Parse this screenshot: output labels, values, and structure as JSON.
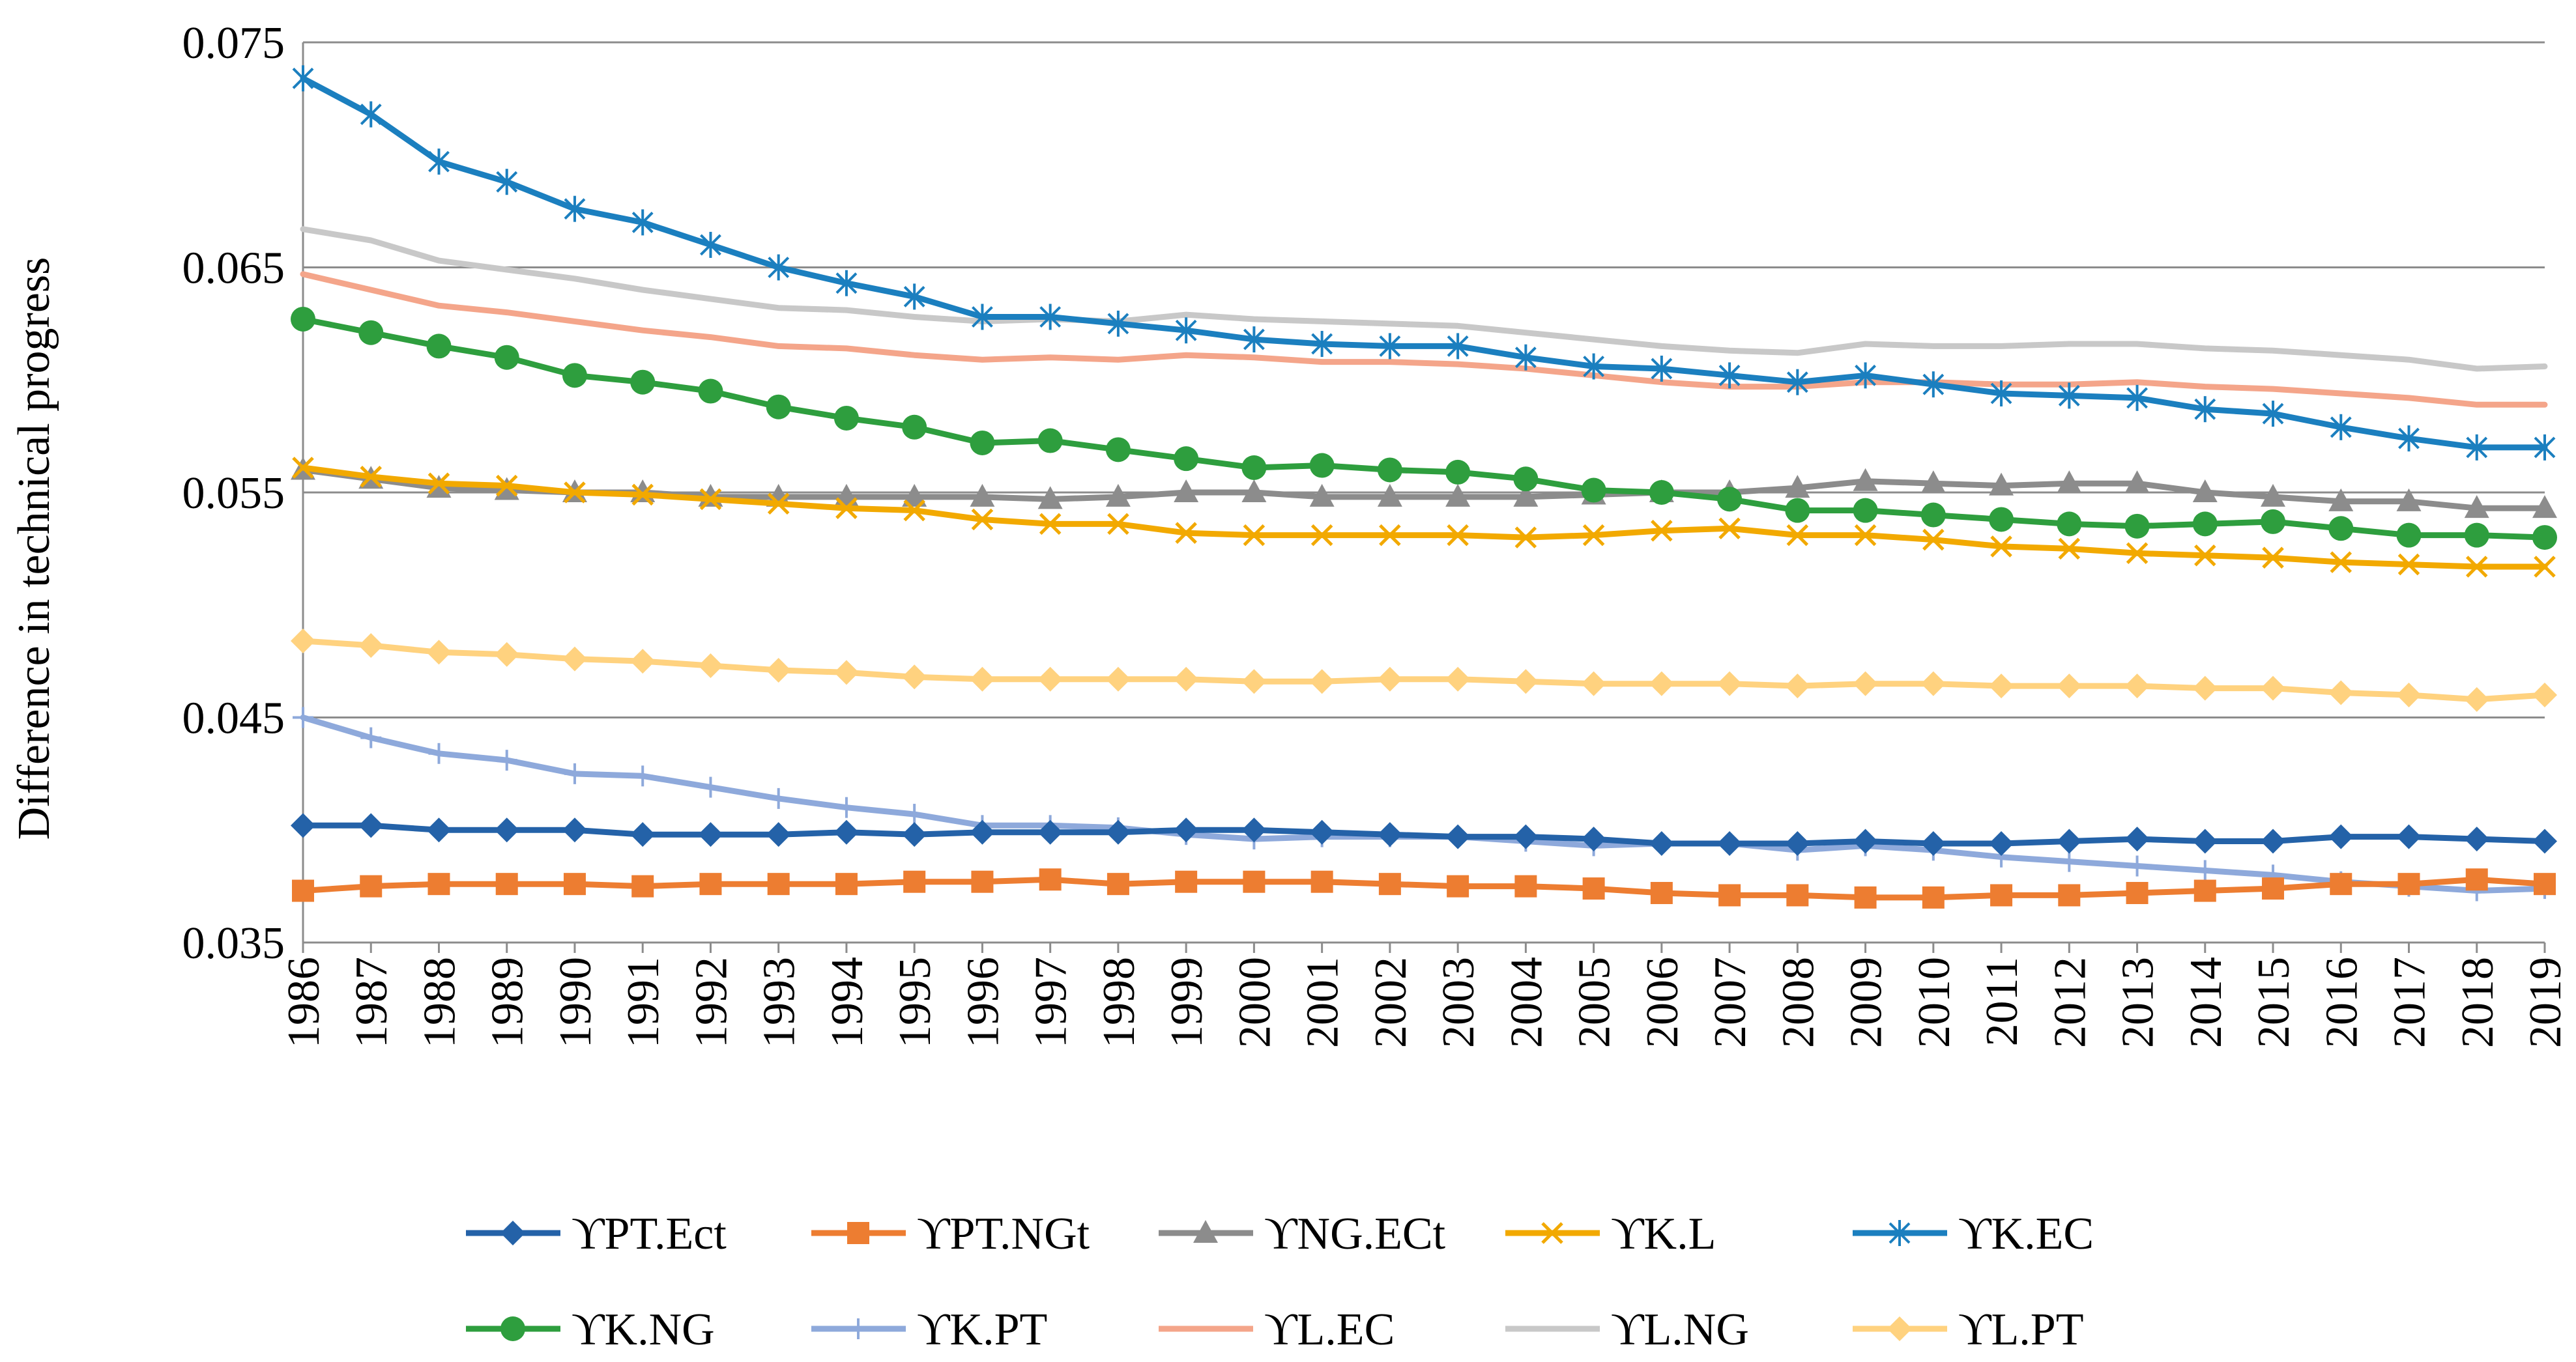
{
  "chart_data": {
    "type": "line",
    "title": "",
    "xlabel": "",
    "ylabel": "Difference in technical progress",
    "ylim": [
      0.035,
      0.075
    ],
    "yticks": [
      "0.075",
      "0.065",
      "0.055",
      "0.045",
      "0.035"
    ],
    "ytick_values": [
      0.075,
      0.065,
      0.055,
      0.045,
      0.035
    ],
    "grid": "horizontal",
    "legend_position": "bottom",
    "categories": [
      "1986",
      "1987",
      "1988",
      "1989",
      "1990",
      "1991",
      "1992",
      "1993",
      "1994",
      "1995",
      "1996",
      "1997",
      "1998",
      "1999",
      "2000",
      "2001",
      "2002",
      "2003",
      "2004",
      "2005",
      "2006",
      "2007",
      "2008",
      "2009",
      "2010",
      "2011",
      "2012",
      "2013",
      "2014",
      "2015",
      "2016",
      "2017",
      "2018",
      "2019"
    ],
    "series": [
      {
        "name": "ϒPT.Ect",
        "color": "#2462a8",
        "marker": "diamond",
        "values": [
          0.0402,
          0.0402,
          0.04,
          0.04,
          0.04,
          0.0398,
          0.0398,
          0.0398,
          0.0399,
          0.0398,
          0.0399,
          0.0399,
          0.0399,
          0.04,
          0.04,
          0.0399,
          0.0398,
          0.0397,
          0.0397,
          0.0396,
          0.0394,
          0.0394,
          0.0394,
          0.0395,
          0.0394,
          0.0394,
          0.0395,
          0.0396,
          0.0395,
          0.0395,
          0.0397,
          0.0397,
          0.0396,
          0.0395
        ]
      },
      {
        "name": "ϒPT.NGt",
        "color": "#ed7d31",
        "marker": "square",
        "values": [
          0.0373,
          0.0375,
          0.0376,
          0.0376,
          0.0376,
          0.0375,
          0.0376,
          0.0376,
          0.0376,
          0.0377,
          0.0377,
          0.0378,
          0.0376,
          0.0377,
          0.0377,
          0.0377,
          0.0376,
          0.0375,
          0.0375,
          0.0374,
          0.0372,
          0.0371,
          0.0371,
          0.037,
          0.037,
          0.0371,
          0.0371,
          0.0372,
          0.0373,
          0.0374,
          0.0376,
          0.0376,
          0.0378,
          0.0376
        ]
      },
      {
        "name": "ϒNG.ECt",
        "color": "#8c8c8c",
        "marker": "triangle",
        "values": [
          0.056,
          0.0556,
          0.0552,
          0.0551,
          0.055,
          0.055,
          0.0548,
          0.0548,
          0.0548,
          0.0548,
          0.0548,
          0.0547,
          0.0548,
          0.055,
          0.055,
          0.0548,
          0.0548,
          0.0548,
          0.0548,
          0.0549,
          0.055,
          0.055,
          0.0552,
          0.0555,
          0.0554,
          0.0553,
          0.0554,
          0.0554,
          0.055,
          0.0548,
          0.0546,
          0.0546,
          0.0543,
          0.0543
        ]
      },
      {
        "name": "ϒK.L",
        "color": "#f2a900",
        "marker": "x",
        "values": [
          0.0561,
          0.0557,
          0.0554,
          0.0553,
          0.055,
          0.0549,
          0.0547,
          0.0545,
          0.0543,
          0.0542,
          0.0538,
          0.0536,
          0.0536,
          0.0532,
          0.0531,
          0.0531,
          0.0531,
          0.0531,
          0.053,
          0.0531,
          0.0533,
          0.0534,
          0.0531,
          0.0531,
          0.0529,
          0.0526,
          0.0525,
          0.0523,
          0.0522,
          0.0521,
          0.0519,
          0.0518,
          0.0517,
          0.0517
        ]
      },
      {
        "name": "ϒK.EC",
        "color": "#1b7fbf",
        "marker": "asterisk",
        "values": [
          0.0734,
          0.0718,
          0.0697,
          0.0688,
          0.0676,
          0.067,
          0.066,
          0.065,
          0.0643,
          0.0637,
          0.0628,
          0.0628,
          0.0625,
          0.0622,
          0.0618,
          0.0616,
          0.0615,
          0.0615,
          0.061,
          0.0606,
          0.0605,
          0.0602,
          0.0599,
          0.0602,
          0.0598,
          0.0594,
          0.0593,
          0.0592,
          0.0587,
          0.0585,
          0.0579,
          0.0574,
          0.057,
          0.057
        ]
      },
      {
        "name": "ϒK.NG",
        "color": "#2e9e3e",
        "marker": "circle",
        "values": [
          0.0627,
          0.0621,
          0.0615,
          0.061,
          0.0602,
          0.0599,
          0.0595,
          0.0588,
          0.0583,
          0.0579,
          0.0572,
          0.0573,
          0.0569,
          0.0565,
          0.0561,
          0.0562,
          0.056,
          0.0559,
          0.0556,
          0.0551,
          0.055,
          0.0547,
          0.0542,
          0.0542,
          0.054,
          0.0538,
          0.0536,
          0.0535,
          0.0536,
          0.0537,
          0.0534,
          0.0531,
          0.0531,
          0.053
        ]
      },
      {
        "name": "ϒK.PT",
        "color": "#8ea9db",
        "marker": "plus",
        "values": [
          0.045,
          0.0441,
          0.0434,
          0.0431,
          0.0425,
          0.0424,
          0.0419,
          0.0414,
          0.041,
          0.0407,
          0.0402,
          0.0402,
          0.0401,
          0.0398,
          0.0396,
          0.0397,
          0.0397,
          0.0397,
          0.0395,
          0.0393,
          0.0394,
          0.0394,
          0.0391,
          0.0393,
          0.0391,
          0.0388,
          0.0386,
          0.0384,
          0.0382,
          0.038,
          0.0377,
          0.0375,
          0.0373,
          0.0374
        ]
      },
      {
        "name": "ϒL.EC",
        "color": "#f4a58a",
        "marker": "none",
        "values": [
          0.0647,
          0.064,
          0.0633,
          0.063,
          0.0626,
          0.0622,
          0.0619,
          0.0615,
          0.0614,
          0.0611,
          0.0609,
          0.061,
          0.0609,
          0.0611,
          0.061,
          0.0608,
          0.0608,
          0.0607,
          0.0605,
          0.0602,
          0.0599,
          0.0597,
          0.0597,
          0.0599,
          0.0599,
          0.0598,
          0.0598,
          0.0599,
          0.0597,
          0.0596,
          0.0594,
          0.0592,
          0.0589,
          0.0589
        ]
      },
      {
        "name": "ϒL.NG",
        "color": "#c8c8c8",
        "marker": "none",
        "values": [
          0.0667,
          0.0662,
          0.0653,
          0.0649,
          0.0645,
          0.064,
          0.0636,
          0.0632,
          0.0631,
          0.0628,
          0.0626,
          0.0627,
          0.0626,
          0.0629,
          0.0627,
          0.0626,
          0.0625,
          0.0624,
          0.0621,
          0.0618,
          0.0615,
          0.0613,
          0.0612,
          0.0616,
          0.0615,
          0.0615,
          0.0616,
          0.0616,
          0.0614,
          0.0613,
          0.0611,
          0.0609,
          0.0605,
          0.0606
        ]
      },
      {
        "name": "ϒL.PT",
        "color": "#ffd27f",
        "marker": "diamond",
        "values": [
          0.0484,
          0.0482,
          0.0479,
          0.0478,
          0.0476,
          0.0475,
          0.0473,
          0.0471,
          0.047,
          0.0468,
          0.0467,
          0.0467,
          0.0467,
          0.0467,
          0.0466,
          0.0466,
          0.0467,
          0.0467,
          0.0466,
          0.0465,
          0.0465,
          0.0465,
          0.0464,
          0.0465,
          0.0465,
          0.0464,
          0.0464,
          0.0464,
          0.0463,
          0.0463,
          0.0461,
          0.046,
          0.0458,
          0.046
        ]
      }
    ]
  }
}
